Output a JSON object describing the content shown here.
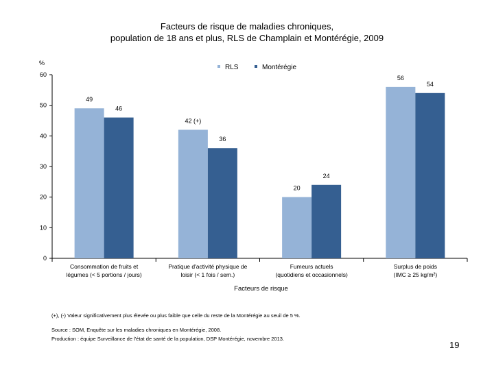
{
  "chart_data": {
    "type": "bar",
    "title_line1": "Facteurs de risque de maladies chroniques,",
    "title_line2": "population de 18 ans et plus, RLS de Champlain et Montérégie, 2009",
    "ylabel": "%",
    "xlabel": "Facteurs de risque",
    "ylim": [
      0,
      60
    ],
    "yticks": [
      0,
      10,
      20,
      30,
      40,
      50,
      60
    ],
    "grid": false,
    "legend_position": "top",
    "categories": [
      [
        "Consommation de fruits et",
        "légumes (< 5 portions / jours)"
      ],
      [
        "Pratique d'activité physique de",
        "loisir (< 1 fois / sem.)"
      ],
      [
        "Fumeurs actuels",
        "(quotidiens et occasionnels)"
      ],
      [
        "Surplus de poids",
        "(IMC ≥ 25 kg/m²)"
      ]
    ],
    "series": [
      {
        "name": "RLS",
        "color": "#95b3d7",
        "values": [
          49,
          42,
          20,
          56
        ],
        "labels": [
          "49",
          "42 (+)",
          "20",
          "56"
        ]
      },
      {
        "name": "Montérégie",
        "color": "#355f91",
        "values": [
          46,
          36,
          24,
          54
        ],
        "labels": [
          "46",
          "36",
          "24",
          "54"
        ]
      }
    ]
  },
  "notes": {
    "significance": "(+), (-) Valeur significativement plus élevée ou plus faible que celle du reste de la Montérégie au seuil de 5 %.",
    "source": "Source : SOM, Enquête sur les maladies chroniques en Montérégie, 2008.",
    "production": "Production : équipe Surveillance de l'état de santé de la population, DSP Montérégie, novembre 2013."
  },
  "page_number": "19"
}
